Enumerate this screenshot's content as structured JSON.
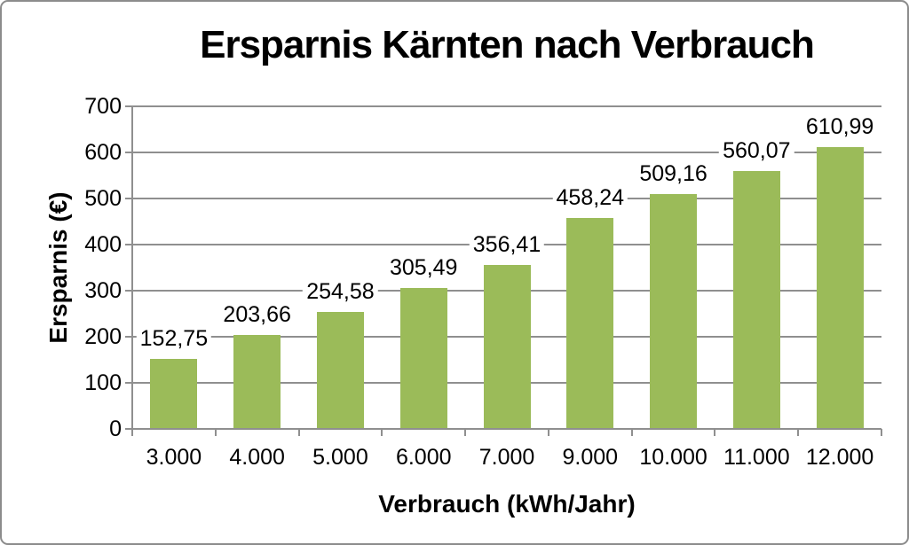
{
  "frame": {
    "background": "#ffffff",
    "border_color": "#8c8c8c"
  },
  "chart_data": {
    "type": "bar",
    "title": "Ersparnis Kärnten nach Verbrauch",
    "xlabel": "Verbrauch (kWh/Jahr)",
    "ylabel": "Ersparnis (€)",
    "categories": [
      "3.000",
      "4.000",
      "5.000",
      "6.000",
      "7.000",
      "9.000",
      "10.000",
      "11.000",
      "12.000"
    ],
    "values": [
      152.75,
      203.66,
      254.58,
      305.49,
      356.41,
      458.24,
      509.16,
      560.07,
      610.99
    ],
    "value_labels": [
      "152,75",
      "203,66",
      "254,58",
      "305,49",
      "356,41",
      "458,24",
      "509,16",
      "560,07",
      "610,99"
    ],
    "ylim": [
      0,
      700
    ],
    "ytick_step": 100,
    "ytick_labels": [
      "0",
      "100",
      "200",
      "300",
      "400",
      "500",
      "600",
      "700"
    ],
    "grid": true,
    "legend": false,
    "bar_color": "#9bbb59",
    "grid_color": "#8f8f8f",
    "axis_color": "#8f8f8f",
    "text_color": "#000000"
  }
}
